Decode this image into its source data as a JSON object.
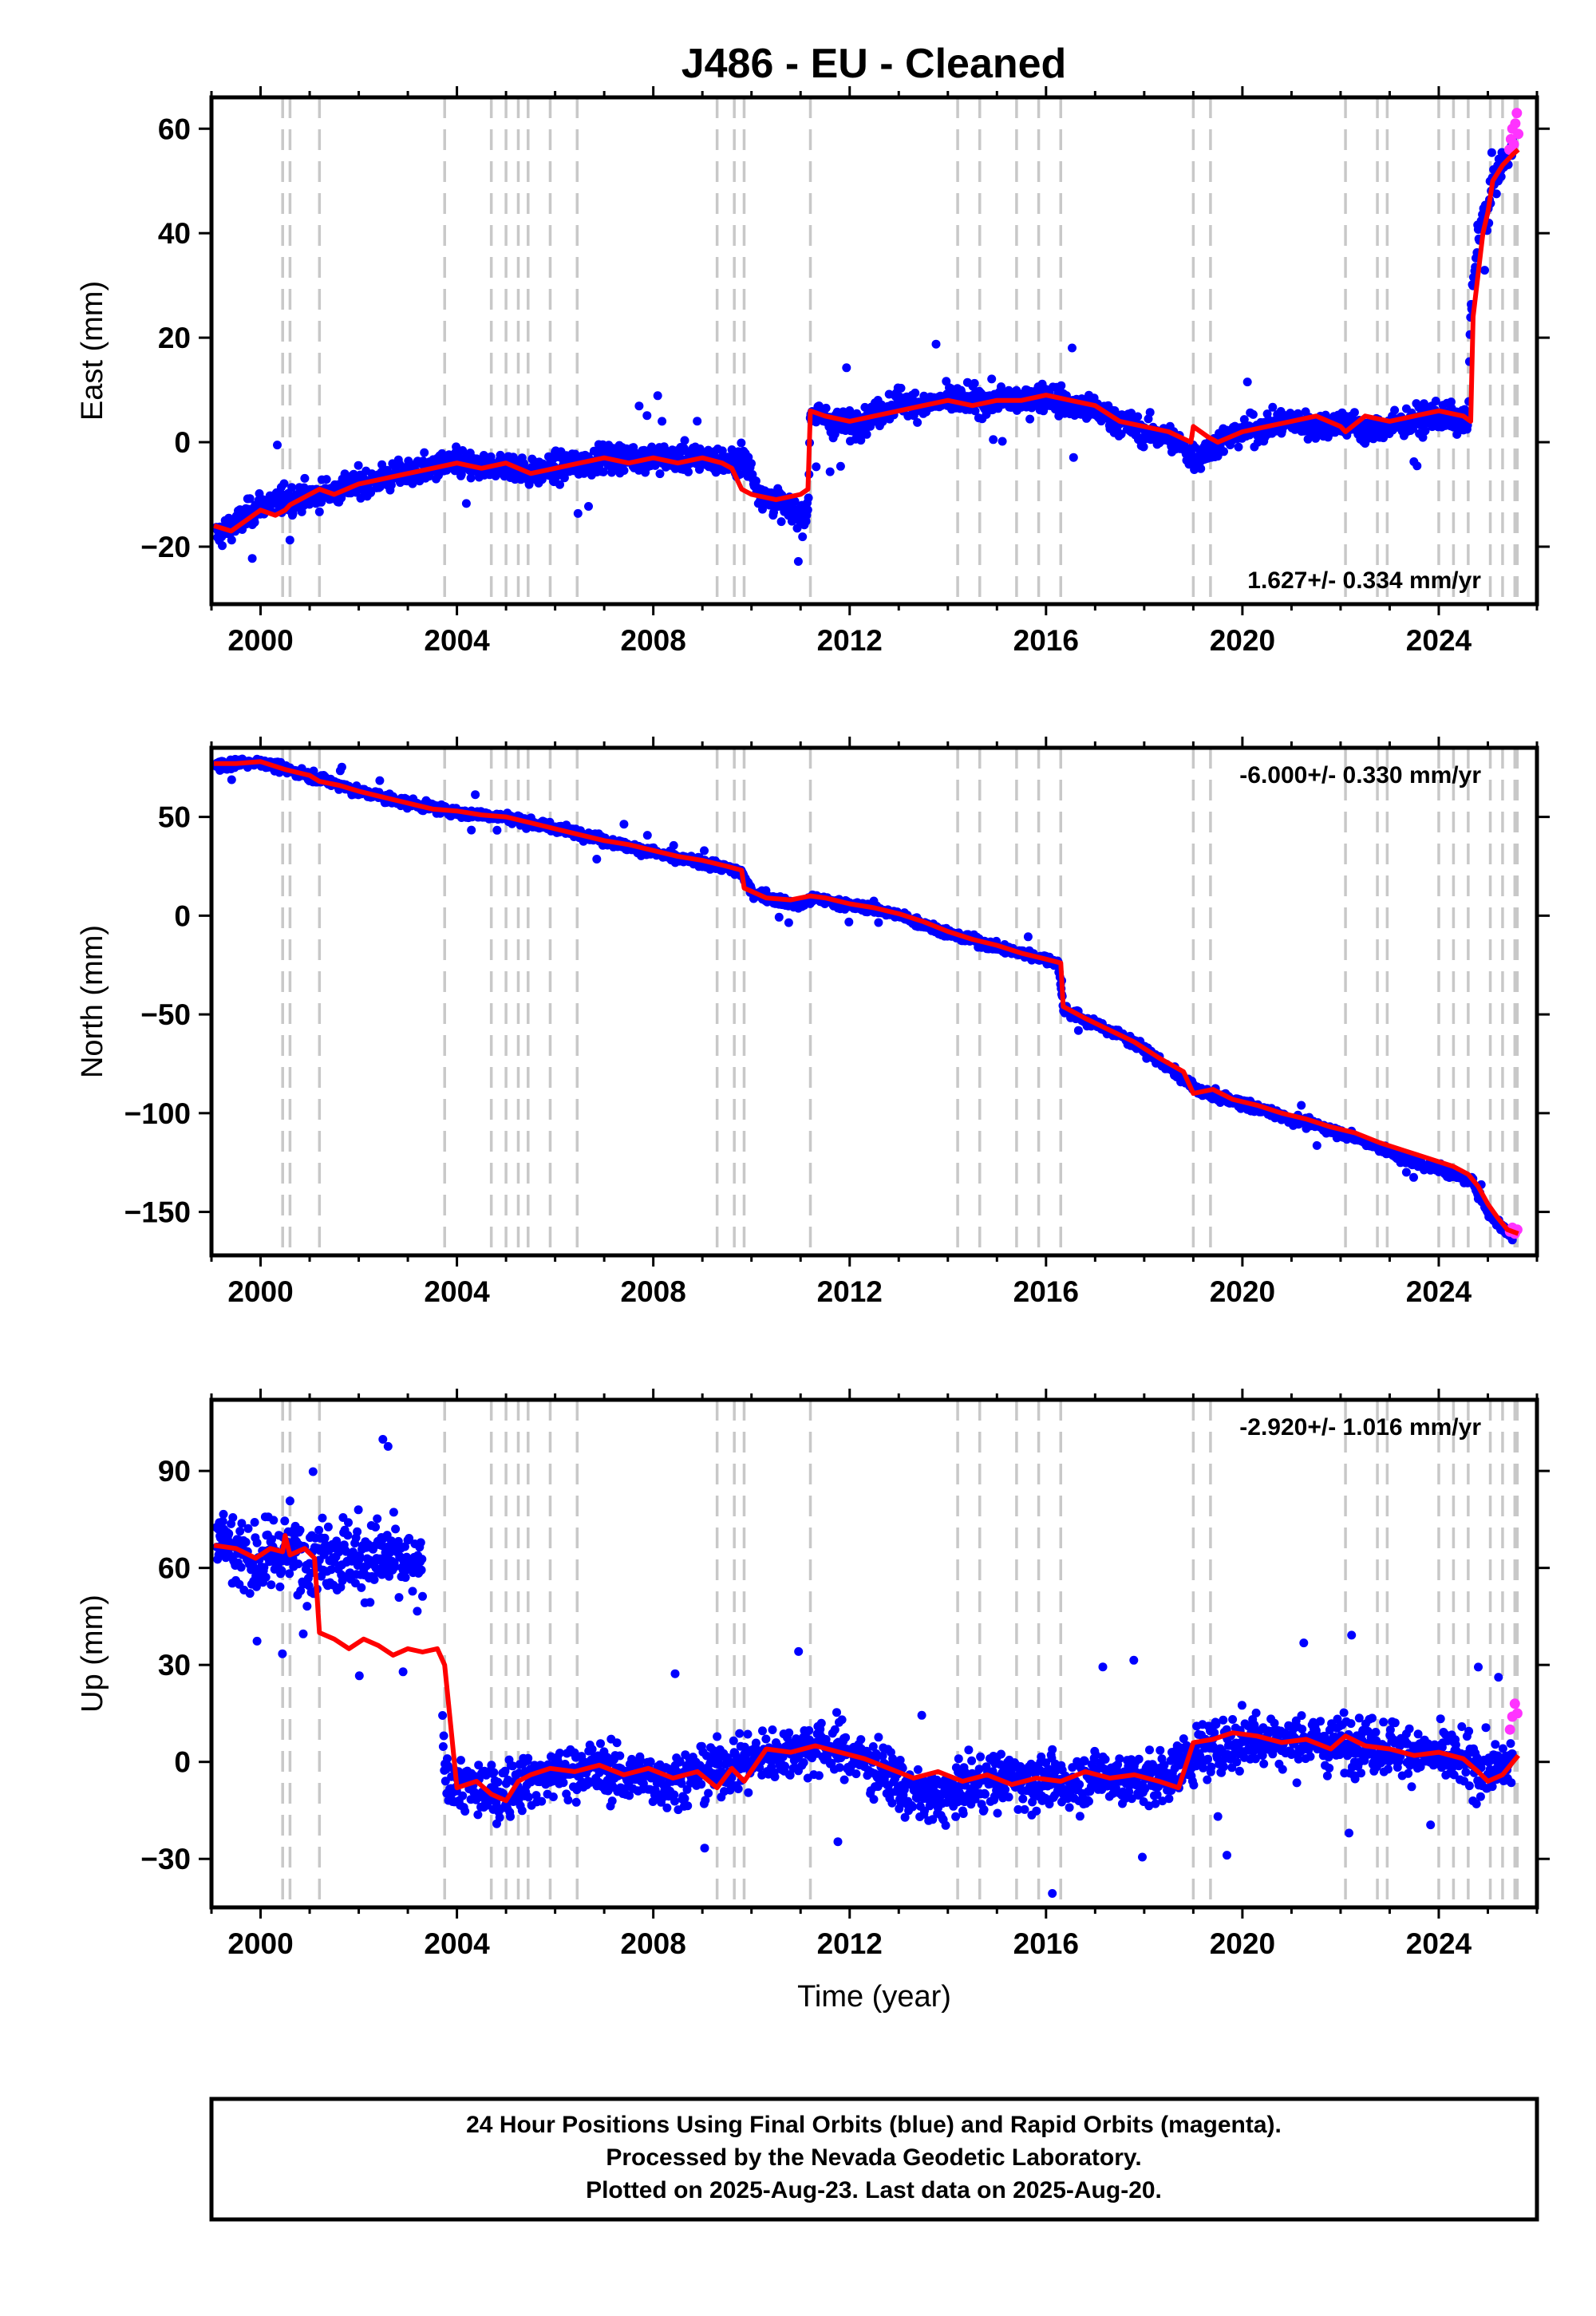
{
  "title": "J486  - EU - Cleaned",
  "colors": {
    "final": "#0000ff",
    "rapid": "#ff33ff",
    "model": "#ff0000",
    "events": "#c8c8c8"
  },
  "chart_data": [
    {
      "type": "scatter",
      "component": "east",
      "ylabel": "East (mm)",
      "xlabel": "",
      "xlim": [
        1999.0,
        2026.0
      ],
      "ylim": [
        -31,
        66
      ],
      "xticks": [
        2000,
        2004,
        2008,
        2012,
        2016,
        2020,
        2024
      ],
      "yticks": [
        -20,
        0,
        20,
        40,
        60
      ],
      "ytick_labels": [
        "−20",
        "0",
        "20",
        "40",
        "60"
      ],
      "rate": "1.627+/- 0.334 mm/yr",
      "rate_position": "bottom-right",
      "scatter_sd": 2.2,
      "series": [
        {
          "name": "Final Orbits",
          "x": [
            1999.1,
            1999.6,
            2000.0,
            2000.6,
            2001.2,
            2001.6,
            2002.0,
            2002.5,
            2003.0,
            2003.5,
            2004.0,
            2004.5,
            2005.0,
            2005.5,
            2006.0,
            2006.5,
            2007.0,
            2007.5,
            2008.0,
            2008.5,
            2009.0,
            2009.5,
            2009.85,
            2010.2,
            2010.6,
            2011.0,
            2011.15,
            2011.2,
            2011.6,
            2012.0,
            2012.5,
            2013.0,
            2013.5,
            2014.0,
            2014.5,
            2015.0,
            2015.5,
            2016.0,
            2016.5,
            2017.0,
            2017.5,
            2018.0,
            2018.5,
            2018.9,
            2019.1,
            2019.5,
            2020.0,
            2020.5,
            2021.0,
            2021.5,
            2022.0,
            2022.5,
            2023.0,
            2023.5,
            2024.0,
            2024.5,
            2024.6,
            2024.65,
            2024.8,
            2025.0,
            2025.1,
            2025.3,
            2025.5
          ],
          "y": [
            -18,
            -15,
            -12,
            -11,
            -10,
            -9,
            -8,
            -7,
            -6,
            -5,
            -4,
            -5,
            -4,
            -6,
            -5,
            -4,
            -3,
            -3,
            -3,
            -3,
            -3,
            -4,
            -3,
            -10,
            -12,
            -14,
            -14,
            6,
            4,
            3,
            5,
            8,
            7,
            8,
            8,
            8,
            8,
            9,
            7,
            6,
            4,
            2,
            1,
            -2,
            -3,
            0,
            2,
            3,
            4,
            3,
            4,
            2,
            3,
            4,
            5,
            4,
            3,
            25,
            40,
            44,
            50,
            53,
            56
          ]
        },
        {
          "name": "Rapid Orbits",
          "x": [
            2025.44,
            2025.47,
            2025.5,
            2025.53,
            2025.56,
            2025.59,
            2025.62
          ],
          "y": [
            56,
            58,
            60,
            57,
            61,
            63,
            59
          ]
        }
      ],
      "model": {
        "x": [
          1999.05,
          1999.4,
          1999.7,
          2000.0,
          2000.3,
          2000.5,
          2000.6,
          2000.8,
          2001.0,
          2001.2,
          2001.5,
          2002.0,
          2002.5,
          2003.0,
          2003.5,
          2004.0,
          2004.5,
          2005.0,
          2005.5,
          2006.0,
          2006.5,
          2007.0,
          2007.5,
          2008.0,
          2008.5,
          2009.0,
          2009.4,
          2009.6,
          2009.8,
          2010.0,
          2010.5,
          2011.0,
          2011.15,
          2011.2,
          2011.5,
          2012.0,
          2012.5,
          2013.0,
          2013.5,
          2014.0,
          2014.5,
          2015.0,
          2015.5,
          2016.0,
          2016.5,
          2017.0,
          2017.5,
          2018.0,
          2018.5,
          2018.95,
          2019.0,
          2019.3,
          2019.5,
          2020.0,
          2020.5,
          2021.0,
          2021.5,
          2022.0,
          2022.1,
          2022.5,
          2023.0,
          2023.5,
          2024.0,
          2024.5,
          2024.65,
          2024.7,
          2024.9,
          2025.0,
          2025.1,
          2025.3,
          2025.5,
          2025.62
        ],
        "y": [
          -16,
          -17,
          -15,
          -13,
          -14,
          -13,
          -12,
          -11,
          -10,
          -9,
          -10,
          -8,
          -7,
          -6,
          -5,
          -4,
          -5,
          -4,
          -6,
          -5,
          -4,
          -3,
          -4,
          -3,
          -4,
          -3,
          -4,
          -5,
          -9,
          -10,
          -11,
          -10,
          -9,
          6,
          5,
          4,
          5,
          6,
          7,
          8,
          7,
          8,
          8,
          9,
          8,
          7,
          4,
          3,
          2,
          0,
          3,
          1,
          0,
          2,
          3,
          4,
          5,
          3,
          2,
          5,
          4,
          5,
          6,
          5,
          4,
          24,
          40,
          44,
          50,
          53,
          55,
          56
        ]
      },
      "events": [
        2000.45,
        2000.6,
        2001.2,
        2003.75,
        2004.7,
        2005.0,
        2005.25,
        2005.45,
        2005.9,
        2006.45,
        2009.3,
        2009.65,
        2009.85,
        2011.2,
        2014.2,
        2014.65,
        2015.4,
        2015.85,
        2016.3,
        2019.0,
        2019.35,
        2022.1,
        2022.75,
        2022.95,
        2024.0,
        2024.3,
        2024.6,
        2025.05,
        2025.3,
        2025.55,
        2025.6
      ]
    },
    {
      "type": "scatter",
      "component": "north",
      "ylabel": "North (mm)",
      "xlabel": "",
      "xlim": [
        1999.0,
        2026.0
      ],
      "ylim": [
        -172,
        85
      ],
      "xticks": [
        2000,
        2004,
        2008,
        2012,
        2016,
        2020,
        2024
      ],
      "yticks": [
        -150,
        -100,
        -50,
        0,
        50
      ],
      "ytick_labels": [
        "−150",
        "−100",
        "−50",
        "0",
        "50"
      ],
      "rate": "-6.000+/- 0.330 mm/yr",
      "rate_position": "top-right",
      "scatter_sd": 2.0,
      "series": [
        {
          "name": "Final Orbits",
          "x": [
            1999.1,
            1999.5,
            2000.0,
            2000.5,
            2001.0,
            2001.5,
            2002.0,
            2002.5,
            2003.0,
            2003.5,
            2004.0,
            2004.5,
            2005.0,
            2005.5,
            2006.0,
            2006.5,
            2007.0,
            2007.5,
            2008.0,
            2008.5,
            2009.0,
            2009.5,
            2009.8,
            2010.0,
            2010.5,
            2011.0,
            2011.3,
            2012.0,
            2012.5,
            2013.0,
            2013.5,
            2014.0,
            2014.5,
            2015.0,
            2015.5,
            2016.0,
            2016.25,
            2016.35,
            2016.8,
            2017.5,
            2018.0,
            2018.5,
            2019.0,
            2019.5,
            2020.0,
            2020.5,
            2021.0,
            2021.5,
            2022.0,
            2022.5,
            2023.0,
            2023.5,
            2024.0,
            2024.5,
            2024.7,
            2025.0,
            2025.3,
            2025.5
          ],
          "y": [
            76,
            77,
            78,
            74,
            71,
            67,
            63,
            60,
            57,
            55,
            52,
            51,
            50,
            47,
            44,
            42,
            38,
            35,
            32,
            29,
            27,
            24,
            22,
            12,
            8,
            5,
            9,
            5,
            4,
            0,
            -4,
            -9,
            -12,
            -16,
            -19,
            -22,
            -24,
            -47,
            -53,
            -60,
            -68,
            -77,
            -87,
            -92,
            -95,
            -99,
            -103,
            -106,
            -110,
            -114,
            -120,
            -125,
            -128,
            -133,
            -135,
            -150,
            -158,
            -162
          ]
        },
        {
          "name": "Rapid Orbits",
          "x": [
            2025.45,
            2025.5,
            2025.55,
            2025.6
          ],
          "y": [
            -160,
            -158,
            -161,
            -159
          ]
        }
      ],
      "model": {
        "x": [
          1999.05,
          1999.5,
          2000.0,
          2000.5,
          2001.0,
          2001.2,
          2001.6,
          2002.0,
          2002.5,
          2003.0,
          2003.5,
          2004.0,
          2004.5,
          2005.0,
          2005.5,
          2006.0,
          2006.5,
          2007.0,
          2007.5,
          2008.0,
          2008.5,
          2009.0,
          2009.5,
          2009.8,
          2009.85,
          2010.3,
          2010.8,
          2011.2,
          2011.5,
          2012.0,
          2012.5,
          2013.0,
          2013.5,
          2014.0,
          2014.5,
          2015.0,
          2015.5,
          2016.0,
          2016.3,
          2016.35,
          2016.8,
          2017.3,
          2017.8,
          2018.3,
          2018.8,
          2019.0,
          2019.4,
          2019.8,
          2020.3,
          2020.8,
          2021.3,
          2021.8,
          2022.3,
          2022.8,
          2023.3,
          2023.8,
          2024.3,
          2024.6,
          2024.8,
          2025.0,
          2025.2,
          2025.4,
          2025.62
        ],
        "y": [
          77,
          77,
          78,
          74,
          71,
          68,
          66,
          63,
          60,
          57,
          54,
          53,
          51,
          50,
          47,
          44,
          41,
          38,
          36,
          33,
          30,
          28,
          25,
          23,
          14,
          9,
          8,
          10,
          9,
          6,
          4,
          1,
          -3,
          -8,
          -12,
          -15,
          -19,
          -22,
          -24,
          -46,
          -52,
          -58,
          -64,
          -72,
          -79,
          -90,
          -88,
          -93,
          -96,
          -100,
          -103,
          -107,
          -110,
          -115,
          -119,
          -123,
          -127,
          -131,
          -137,
          -146,
          -153,
          -159,
          -161
        ]
      },
      "events": [
        2000.45,
        2000.6,
        2001.2,
        2003.75,
        2004.7,
        2005.0,
        2005.25,
        2005.45,
        2005.9,
        2006.45,
        2009.3,
        2009.65,
        2009.85,
        2011.2,
        2014.2,
        2014.65,
        2015.4,
        2015.85,
        2016.3,
        2019.0,
        2019.35,
        2022.1,
        2022.75,
        2022.95,
        2024.0,
        2024.3,
        2024.6,
        2025.05,
        2025.3,
        2025.55,
        2025.6
      ]
    },
    {
      "type": "scatter",
      "component": "up",
      "ylabel": "Up (mm)",
      "xlabel": "Time (year)",
      "xlim": [
        1999.0,
        2026.0
      ],
      "ylim": [
        -45,
        112
      ],
      "xticks": [
        2000,
        2004,
        2008,
        2012,
        2016,
        2020,
        2024
      ],
      "yticks": [
        -30,
        0,
        30,
        60,
        90
      ],
      "ytick_labels": [
        "−30",
        "0",
        "30",
        "60",
        "90"
      ],
      "rate": "-2.920+/- 1.016 mm/yr",
      "rate_position": "top-right",
      "scatter_sd": 7.0,
      "series": [
        {
          "name": "Final Orbits",
          "x": [
            1999.1,
            1999.5,
            2000.0,
            2000.5,
            2001.0,
            2001.5,
            2002.0,
            2002.5,
            2003.0,
            2003.3,
            2003.8,
            2004.3,
            2004.8,
            2005.3,
            2005.8,
            2006.3,
            2006.8,
            2007.3,
            2007.8,
            2008.3,
            2008.8,
            2009.3,
            2009.8,
            2010.3,
            2010.8,
            2011.3,
            2011.8,
            2012.3,
            2012.8,
            2013.3,
            2013.8,
            2014.3,
            2014.8,
            2015.3,
            2015.8,
            2016.3,
            2016.8,
            2017.3,
            2017.8,
            2018.3,
            2018.8,
            2019.3,
            2019.8,
            2020.3,
            2020.8,
            2021.3,
            2021.8,
            2022.3,
            2022.8,
            2023.3,
            2023.8,
            2024.3,
            2024.8,
            2025.2,
            2025.5
          ],
          "y": [
            72,
            65,
            62,
            66,
            64,
            65,
            63,
            64,
            60,
            58,
            -6,
            -8,
            -10,
            -6,
            -4,
            -3,
            -2,
            -4,
            -5,
            -6,
            -4,
            -2,
            0,
            2,
            3,
            5,
            4,
            0,
            -4,
            -10,
            -12,
            -8,
            -6,
            -5,
            -6,
            -7,
            -5,
            -4,
            -6,
            -5,
            0,
            4,
            6,
            8,
            6,
            7,
            5,
            6,
            5,
            4,
            2,
            1,
            -2,
            -3,
            0
          ]
        },
        {
          "name": "Rapid Orbits",
          "x": [
            2025.45,
            2025.5,
            2025.55,
            2025.6
          ],
          "y": [
            10,
            14,
            18,
            15
          ]
        }
      ],
      "model": {
        "x": [
          1999.05,
          1999.5,
          1999.9,
          2000.2,
          2000.45,
          2000.5,
          2000.6,
          2000.9,
          2001.1,
          2001.2,
          2001.5,
          2001.8,
          2002.1,
          2002.4,
          2002.7,
          2003.0,
          2003.3,
          2003.6,
          2003.75,
          2004.0,
          2004.4,
          2004.7,
          2005.0,
          2005.25,
          2005.5,
          2005.9,
          2006.4,
          2006.9,
          2007.4,
          2007.9,
          2008.4,
          2008.9,
          2009.3,
          2009.6,
          2009.85,
          2010.3,
          2010.8,
          2011.3,
          2011.8,
          2012.3,
          2012.8,
          2013.3,
          2013.8,
          2014.3,
          2014.8,
          2015.3,
          2015.8,
          2016.3,
          2016.8,
          2017.3,
          2017.8,
          2018.3,
          2018.7,
          2019.0,
          2019.4,
          2019.8,
          2020.3,
          2020.8,
          2021.3,
          2021.8,
          2022.1,
          2022.5,
          2023.0,
          2023.5,
          2024.0,
          2024.5,
          2024.8,
          2025.0,
          2025.3,
          2025.62
        ],
        "y": [
          67,
          66,
          63,
          66,
          65,
          70,
          64,
          66,
          63,
          40,
          38,
          35,
          38,
          36,
          33,
          35,
          34,
          35,
          30,
          -8,
          -6,
          -10,
          -12,
          -6,
          -4,
          -2,
          -3,
          -1,
          -4,
          -2,
          -5,
          -3,
          -8,
          -2,
          -6,
          4,
          3,
          5,
          3,
          1,
          -2,
          -5,
          -3,
          -6,
          -4,
          -7,
          -5,
          -6,
          -3,
          -5,
          -4,
          -6,
          -8,
          6,
          7,
          9,
          8,
          6,
          7,
          4,
          8,
          5,
          4,
          2,
          3,
          1,
          -3,
          -6,
          -4,
          2
        ]
      },
      "events": [
        2000.45,
        2000.6,
        2001.2,
        2003.75,
        2004.7,
        2005.0,
        2005.25,
        2005.45,
        2005.9,
        2006.45,
        2009.3,
        2009.65,
        2009.85,
        2011.2,
        2014.2,
        2014.65,
        2015.4,
        2015.85,
        2016.3,
        2019.0,
        2019.35,
        2022.1,
        2022.75,
        2022.95,
        2024.0,
        2024.3,
        2024.6,
        2025.05,
        2025.3,
        2025.55,
        2025.6
      ]
    }
  ],
  "footer": {
    "lines": [
      "24 Hour Positions Using Final Orbits (blue) and Rapid Orbits (magenta).",
      "Processed by the Nevada Geodetic Laboratory.",
      "Plotted on 2025-Aug-23. Last data on 2025-Aug-20."
    ]
  }
}
